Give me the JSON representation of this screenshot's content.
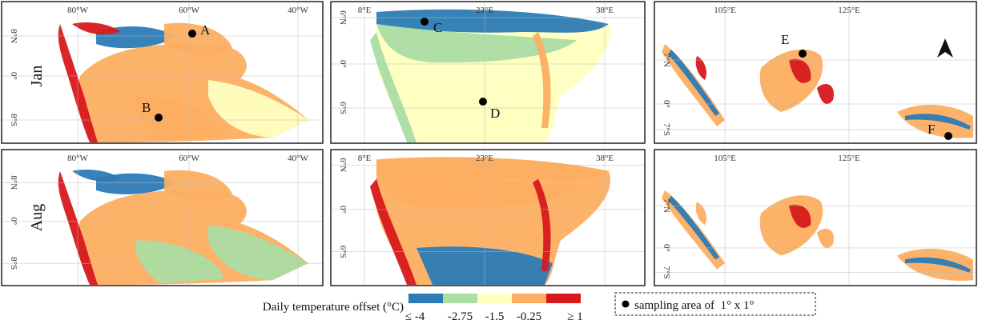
{
  "row_labels": [
    "Jan",
    "Aug"
  ],
  "columns": [
    {
      "lon_labels": [
        "80°W",
        "60°W",
        "40°W"
      ],
      "lat_labels": [
        "8°N",
        "0°",
        "8°S"
      ]
    },
    {
      "lon_labels": [
        "8°E",
        "23°E",
        "38°E"
      ],
      "lat_labels": [
        "6°N",
        "0°",
        "6°S"
      ]
    },
    {
      "lon_labels": [
        "105°E",
        "125°E"
      ],
      "lat_labels": [
        "7°N",
        "0°",
        "7°S"
      ]
    }
  ],
  "sites": [
    "A",
    "B",
    "C",
    "D",
    "E",
    "F"
  ],
  "legend": {
    "title": "Daily temperature offset (°C)",
    "classes": [
      {
        "label": "≤ -4",
        "color": "#2c7bb6"
      },
      {
        "label": "-2.75",
        "color": "#abdda4"
      },
      {
        "label": "-1.5",
        "color": "#ffffbf"
      },
      {
        "label": "-0.25",
        "color": "#fdae61"
      },
      {
        "label": "≥ 1",
        "color": "#d7191c"
      }
    ]
  },
  "sampling_note": "sampling area of  1° x 1°"
}
